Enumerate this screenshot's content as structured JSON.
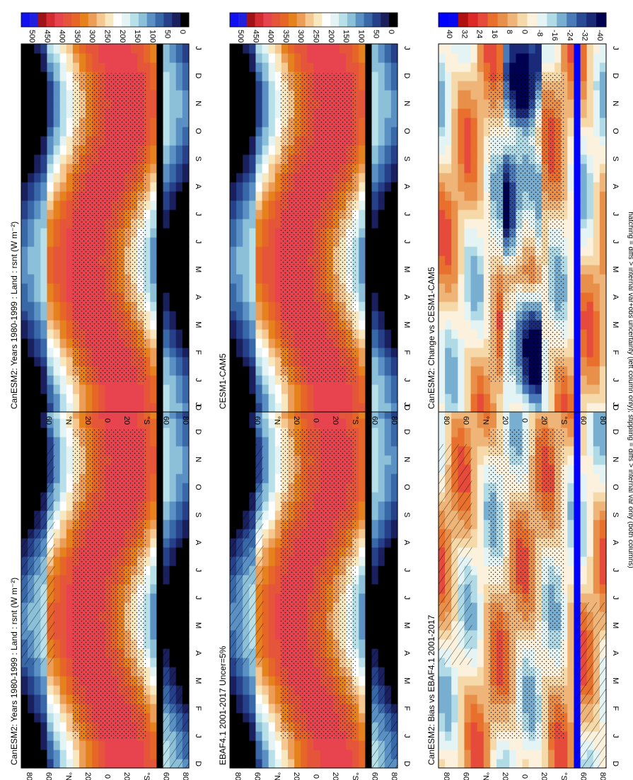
{
  "figure": {
    "footer": "hatching = diffs > internal var+obs uncertainty (left column only); stippling = diffs > internal var only (both columns)"
  },
  "chart_data": [
    {
      "type": "heatmap",
      "title": "CanESM2: Years 1980-1999 : Land : rsnt (W m⁻²)",
      "x": [
        "D",
        "J",
        "F",
        "M",
        "A",
        "M",
        "J",
        "J",
        "A",
        "S",
        "O",
        "N",
        "D",
        "J"
      ],
      "y_ticks": [
        "80",
        "60",
        "°N",
        "20",
        "0",
        "20",
        "°S",
        "60",
        "80"
      ],
      "colorbar": [
        "500",
        "450",
        "400",
        "350",
        "300",
        "250",
        "200",
        "150",
        "100",
        "50",
        "0"
      ],
      "zlim": [
        0,
        550
      ],
      "hatching": true,
      "stippling": true
    },
    {
      "type": "heatmap",
      "title": "CanESM2: Years 1980-1999 : Land : rsnt (W m⁻²)",
      "x": [
        "D",
        "J",
        "F",
        "M",
        "A",
        "M",
        "J",
        "J",
        "A",
        "S",
        "O",
        "N",
        "D",
        "J"
      ],
      "y_ticks": [
        "80",
        "60",
        "°N",
        "20",
        "0",
        "20",
        "°S",
        "60",
        "80"
      ],
      "colorbar": [
        "500",
        "450",
        "400",
        "350",
        "300",
        "250",
        "200",
        "150",
        "100",
        "50",
        "0"
      ],
      "zlim": [
        0,
        550
      ],
      "stippling": true
    },
    {
      "type": "heatmap",
      "title": "EBAF4.1 2001-2017 Uncer=5%",
      "x": [
        "D",
        "J",
        "F",
        "M",
        "A",
        "M",
        "J",
        "J",
        "A",
        "S",
        "O",
        "N",
        "D",
        "J"
      ],
      "y_ticks": [
        "80",
        "60",
        "°N",
        "20",
        "0",
        "20",
        "°S",
        "60",
        "80"
      ],
      "colorbar": [
        "500",
        "450",
        "400",
        "350",
        "300",
        "250",
        "200",
        "150",
        "100",
        "50",
        "0"
      ],
      "zlim": [
        0,
        550
      ],
      "hatching": true,
      "stippling": true
    },
    {
      "type": "heatmap",
      "title": "CESM1-CAM5",
      "x": [
        "D",
        "J",
        "F",
        "M",
        "A",
        "M",
        "J",
        "J",
        "A",
        "S",
        "O",
        "N",
        "D",
        "J"
      ],
      "y_ticks": [
        "80",
        "60",
        "°N",
        "20",
        "0",
        "20",
        "°S",
        "60",
        "80"
      ],
      "colorbar": [
        "500",
        "450",
        "400",
        "350",
        "300",
        "250",
        "200",
        "150",
        "100",
        "50",
        "0"
      ],
      "zlim": [
        0,
        550
      ],
      "stippling": true
    },
    {
      "type": "heatmap",
      "title": "CanESM2: Bias vs EBAF4.1 2001-2017",
      "x": [
        "D",
        "J",
        "F",
        "M",
        "A",
        "M",
        "J",
        "J",
        "A",
        "S",
        "O",
        "N",
        "D",
        "J"
      ],
      "y_ticks": [
        "80",
        "60",
        "°N",
        "20",
        "0",
        "20",
        "°S",
        "60",
        "80"
      ],
      "colorbar": [
        "40",
        "32",
        "24",
        "16",
        "8",
        "0",
        "-8",
        "-16",
        "-24",
        "-32",
        "-40"
      ],
      "zlim": [
        -44,
        44
      ],
      "hatching": true,
      "stippling": true
    },
    {
      "type": "heatmap",
      "title": "CanESM2: Change vs CESM1-CAM5",
      "x": [
        "D",
        "J",
        "F",
        "M",
        "A",
        "M",
        "J",
        "J",
        "A",
        "S",
        "O",
        "N",
        "D",
        "J"
      ],
      "y_ticks": [
        "80",
        "60",
        "°N",
        "20",
        "0",
        "20",
        "°S",
        "60",
        "80"
      ],
      "colorbar": [
        "40",
        "32",
        "24",
        "16",
        "8",
        "0",
        "-8",
        "-16",
        "-24",
        "-32",
        "-40"
      ],
      "zlim": [
        -44,
        44
      ],
      "stippling": true
    }
  ],
  "colors": {
    "abs": [
      "#000000",
      "#1a1f5e",
      "#26408a",
      "#3868a8",
      "#5a90c4",
      "#8cc0d8",
      "#b8e0e8",
      "#e4f4f4",
      "#ffffff",
      "#f8e8c0",
      "#f4c890",
      "#ec9e58",
      "#e6821e",
      "#e56626",
      "#e5553a",
      "#e74450",
      "#d42a32",
      "#a01218",
      "#2020e0",
      "#1010f0"
    ],
    "diff": [
      "#000050",
      "#1a2a78",
      "#2a4a98",
      "#4a7ab8",
      "#78aed0",
      "#b0dbe6",
      "#e4f4f4",
      "#fbf1dc",
      "#f5d9a8",
      "#efb578",
      "#e88f4a",
      "#e8702c",
      "#e64a3a",
      "#dd2828",
      "#b01010",
      "#0808f0",
      "#0000ff"
    ]
  }
}
